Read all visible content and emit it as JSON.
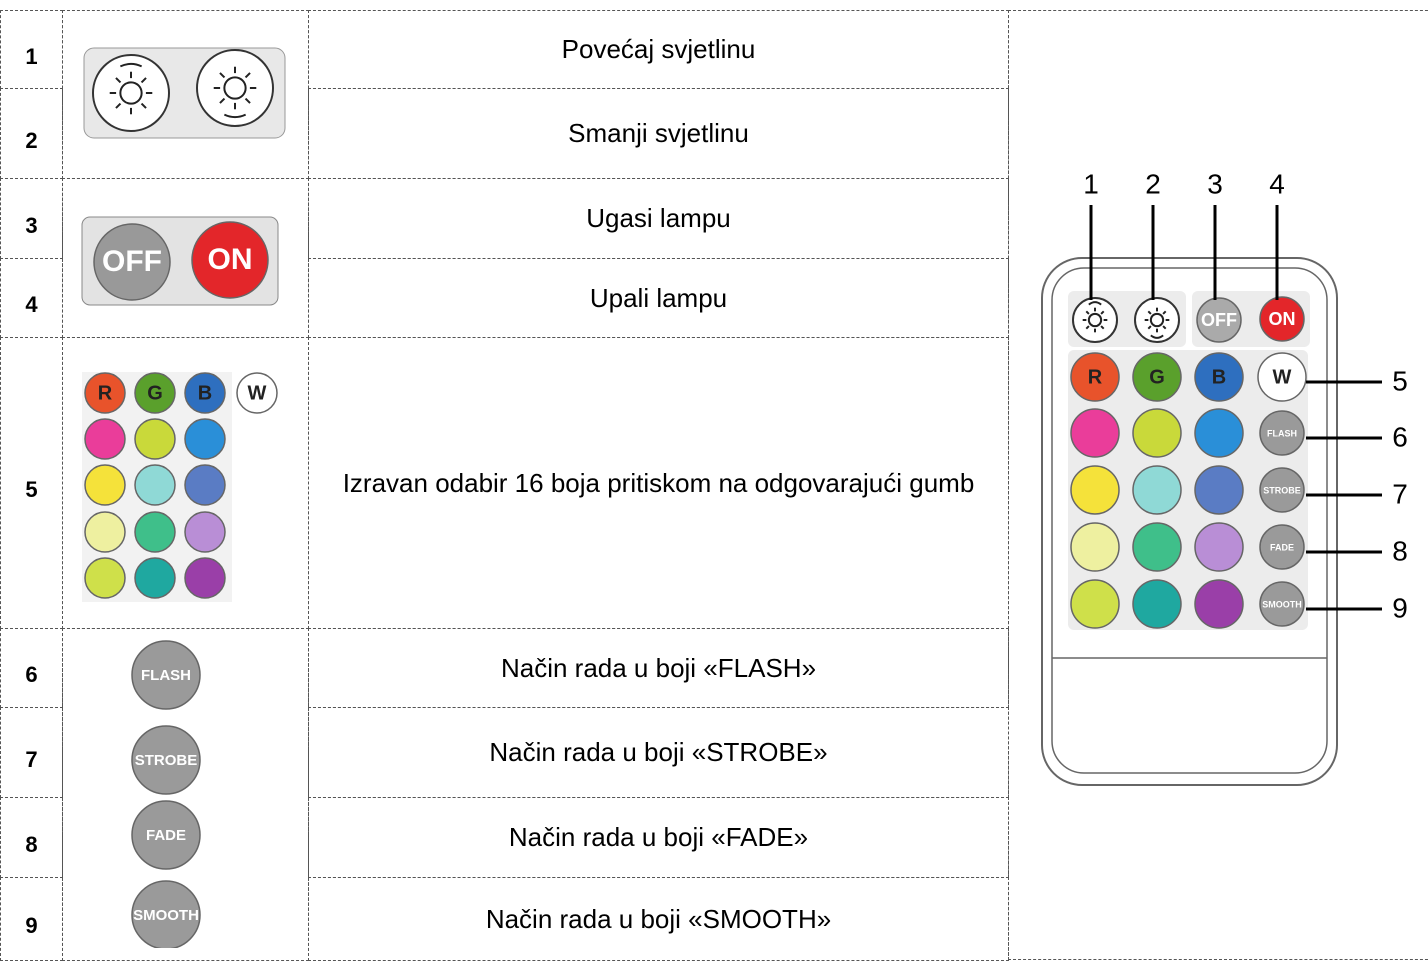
{
  "table": {
    "rows": [
      {
        "number": "1",
        "description": "Povećaj svjetlinu"
      },
      {
        "number": "2",
        "description": "Smanji svjetlinu"
      },
      {
        "number": "3",
        "description": "Ugasi lampu"
      },
      {
        "number": "4",
        "description": "Upali lampu"
      },
      {
        "number": "5",
        "description": "Izravan odabir 16 boja pritiskom na odgovarajući gumb"
      },
      {
        "number": "6",
        "description": "Način rada u boji «FLASH»"
      },
      {
        "number": "7",
        "description": "Način rada u boji «STROBE»"
      },
      {
        "number": "8",
        "description": "Način rada u boji «FADE»"
      },
      {
        "number": "9",
        "description": "Način rada u boji «SMOOTH»"
      }
    ]
  },
  "button_labels": {
    "power": [
      "OFF",
      "ON"
    ],
    "colors": [
      "R",
      "G",
      "B",
      "W"
    ],
    "modes": [
      "FLASH",
      "STROBE",
      "FADE",
      "SMOOTH"
    ]
  },
  "remote": {
    "callouts": [
      "1",
      "2",
      "3",
      "4",
      "5",
      "6",
      "7",
      "8",
      "9"
    ]
  }
}
